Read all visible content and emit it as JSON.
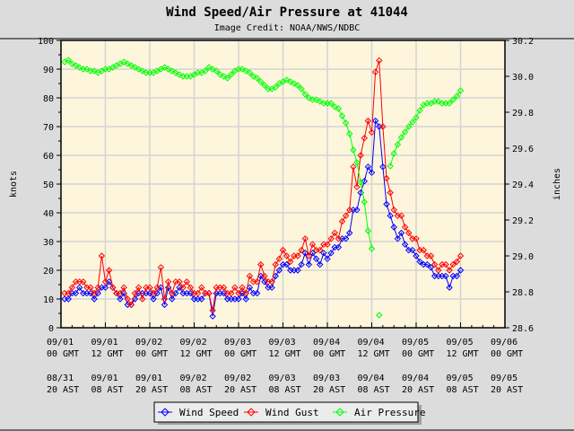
{
  "chart_data": {
    "type": "line",
    "title": "Wind Speed/Air Pressure at 41044",
    "subtitle": "Image Credit: NOAA/NWS/NDBC",
    "ylabel": "knots",
    "y2label": "inches",
    "ylim": [
      0,
      100
    ],
    "y2lim": [
      28.6,
      30.2
    ],
    "yticks": [
      "0",
      "10",
      "20",
      "30",
      "40",
      "50",
      "60",
      "70",
      "80",
      "90",
      "100"
    ],
    "y2ticks": [
      "28.6",
      "28.8",
      "29.0",
      "29.2",
      "29.4",
      "29.6",
      "29.8",
      "30.0",
      "30.2"
    ],
    "xlim": [
      "09/01 00:00",
      "09/06 00:00"
    ],
    "xticks_gmt": [
      [
        "09/01",
        "00 GMT"
      ],
      [
        "09/01",
        "12 GMT"
      ],
      [
        "09/02",
        "00 GMT"
      ],
      [
        "09/02",
        "12 GMT"
      ],
      [
        "09/03",
        "00 GMT"
      ],
      [
        "09/03",
        "12 GMT"
      ],
      [
        "09/04",
        "00 GMT"
      ],
      [
        "09/04",
        "12 GMT"
      ],
      [
        "09/05",
        "00 GMT"
      ],
      [
        "09/05",
        "12 GMT"
      ],
      [
        "09/06",
        "00 GMT"
      ]
    ],
    "xticks_ast": [
      [
        "08/31",
        "20 AST"
      ],
      [
        "09/01",
        "08 AST"
      ],
      [
        "09/01",
        "20 AST"
      ],
      [
        "09/02",
        "08 AST"
      ],
      [
        "09/02",
        "20 AST"
      ],
      [
        "09/03",
        "08 AST"
      ],
      [
        "09/03",
        "20 AST"
      ],
      [
        "09/04",
        "08 AST"
      ],
      [
        "09/04",
        "20 AST"
      ],
      [
        "09/05",
        "08 AST"
      ],
      [
        "09/05",
        "20 AST"
      ]
    ],
    "grid": true,
    "legend_position": "bottom",
    "x": [
      "09/01 01:00",
      "09/01 02:00",
      "09/01 03:00",
      "09/01 04:00",
      "09/01 05:00",
      "09/01 06:00",
      "09/01 07:00",
      "09/01 08:00",
      "09/01 09:00",
      "09/01 10:00",
      "09/01 11:00",
      "09/01 12:00",
      "09/01 13:00",
      "09/01 14:00",
      "09/01 15:00",
      "09/01 16:00",
      "09/01 17:00",
      "09/01 18:00",
      "09/01 19:00",
      "09/01 20:00",
      "09/01 21:00",
      "09/01 22:00",
      "09/01 23:00",
      "09/02 00:00",
      "09/02 01:00",
      "09/02 02:00",
      "09/02 03:00",
      "09/02 04:00",
      "09/02 05:00",
      "09/02 06:00",
      "09/02 07:00",
      "09/02 08:00",
      "09/02 09:00",
      "09/02 10:00",
      "09/02 11:00",
      "09/02 12:00",
      "09/02 13:00",
      "09/02 14:00",
      "09/02 15:00",
      "09/02 16:00",
      "09/02 17:00",
      "09/02 18:00",
      "09/02 19:00",
      "09/02 20:00",
      "09/02 21:00",
      "09/02 22:00",
      "09/02 23:00",
      "09/03 00:00",
      "09/03 01:00",
      "09/03 02:00",
      "09/03 03:00",
      "09/03 04:00",
      "09/03 05:00",
      "09/03 06:00",
      "09/03 07:00",
      "09/03 08:00",
      "09/03 09:00",
      "09/03 10:00",
      "09/03 11:00",
      "09/03 12:00",
      "09/03 13:00",
      "09/03 14:00",
      "09/03 15:00",
      "09/03 16:00",
      "09/03 17:00",
      "09/03 18:00",
      "09/03 19:00",
      "09/03 20:00",
      "09/03 21:00",
      "09/03 22:00",
      "09/03 23:00",
      "09/04 00:00",
      "09/04 01:00",
      "09/04 02:00",
      "09/04 03:00",
      "09/04 04:00",
      "09/04 05:00",
      "09/04 06:00",
      "09/04 07:00",
      "09/04 08:00",
      "09/04 09:00",
      "09/04 10:00",
      "09/04 11:00",
      "09/04 12:00",
      "09/04 13:00",
      "09/04 14:00",
      "09/04 15:00",
      "09/04 16:00",
      "09/04 17:00",
      "09/04 18:00",
      "09/04 19:00",
      "09/04 20:00",
      "09/04 21:00",
      "09/04 22:00",
      "09/04 23:00",
      "09/05 00:00",
      "09/05 01:00",
      "09/05 02:00",
      "09/05 03:00",
      "09/05 04:00",
      "09/05 05:00",
      "09/05 06:00",
      "09/05 07:00",
      "09/05 08:00",
      "09/05 09:00",
      "09/05 10:00",
      "09/05 11:00",
      "09/05 12:00"
    ],
    "series": [
      {
        "name": "Wind Speed",
        "axis": "left",
        "color": "#0000ff",
        "values": [
          10,
          10,
          12,
          12,
          14,
          12,
          12,
          12,
          10,
          12,
          14,
          14,
          16,
          14,
          12,
          10,
          12,
          8,
          8,
          10,
          12,
          12,
          12,
          12,
          10,
          12,
          14,
          8,
          14,
          10,
          12,
          14,
          12,
          12,
          12,
          10,
          10,
          10,
          12,
          12,
          4,
          12,
          12,
          12,
          10,
          10,
          10,
          10,
          12,
          10,
          14,
          12,
          12,
          18,
          16,
          14,
          14,
          18,
          20,
          22,
          22,
          20,
          20,
          20,
          22,
          26,
          22,
          26,
          24,
          22,
          26,
          24,
          26,
          28,
          28,
          31,
          31,
          33,
          41,
          41,
          47,
          51,
          56,
          54,
          72,
          70,
          56,
          43,
          39,
          35,
          31,
          33,
          29,
          27,
          27,
          25,
          23,
          22,
          22,
          21,
          18,
          18,
          18,
          18,
          14,
          18,
          18,
          20
        ]
      },
      {
        "name": "Wind Gust",
        "axis": "left",
        "color": "#ff0000",
        "values": [
          12,
          12,
          14,
          16,
          16,
          16,
          14,
          14,
          12,
          14,
          25,
          16,
          20,
          14,
          12,
          12,
          14,
          10,
          8,
          12,
          14,
          10,
          14,
          14,
          12,
          14,
          21,
          10,
          16,
          12,
          16,
          16,
          14,
          16,
          14,
          12,
          12,
          14,
          12,
          12,
          6,
          14,
          14,
          14,
          12,
          12,
          14,
          12,
          14,
          12,
          18,
          16,
          16,
          22,
          18,
          16,
          16,
          22,
          24,
          27,
          25,
          23,
          25,
          25,
          27,
          31,
          25,
          29,
          27,
          27,
          29,
          29,
          31,
          33,
          31,
          37,
          39,
          41,
          56,
          49,
          60,
          66,
          72,
          68,
          89,
          93,
          70,
          52,
          47,
          41,
          39,
          39,
          35,
          33,
          31,
          31,
          27,
          27,
          25,
          25,
          22,
          20,
          22,
          22,
          20,
          22,
          23,
          25
        ]
      },
      {
        "name": "Air Pressure",
        "axis": "right",
        "color": "#00ff00",
        "values": [
          30.08,
          30.09,
          30.07,
          30.06,
          30.05,
          30.04,
          30.04,
          30.03,
          30.03,
          30.02,
          30.03,
          30.04,
          30.04,
          30.05,
          30.06,
          30.07,
          30.08,
          30.07,
          30.06,
          30.05,
          30.04,
          30.03,
          30.02,
          30.02,
          30.02,
          30.03,
          30.04,
          30.05,
          30.04,
          30.03,
          30.02,
          30.01,
          30.0,
          30.0,
          30.0,
          30.01,
          30.02,
          30.02,
          30.03,
          30.05,
          30.04,
          30.03,
          30.01,
          30.0,
          29.99,
          30.01,
          30.03,
          30.04,
          30.04,
          30.03,
          30.02,
          30.0,
          29.99,
          29.97,
          29.95,
          29.93,
          29.93,
          29.94,
          29.96,
          29.97,
          29.98,
          29.97,
          29.96,
          29.95,
          29.93,
          29.9,
          29.88,
          29.87,
          29.87,
          29.86,
          29.85,
          29.85,
          29.85,
          29.83,
          29.82,
          29.78,
          29.74,
          29.68,
          29.59,
          29.52,
          29.41,
          29.3,
          29.14,
          29.04,
          null,
          28.67,
          null,
          null,
          29.5,
          29.57,
          29.62,
          29.66,
          29.69,
          29.72,
          29.745,
          29.77,
          29.81,
          29.84,
          29.85,
          29.85,
          29.86,
          29.86,
          29.85,
          29.85,
          29.85,
          29.87,
          29.89,
          29.92
        ]
      }
    ]
  },
  "colors": {
    "background": "#dcdcdc",
    "plot_background": "#fdf6dc",
    "grid": "#d4d4d4"
  }
}
